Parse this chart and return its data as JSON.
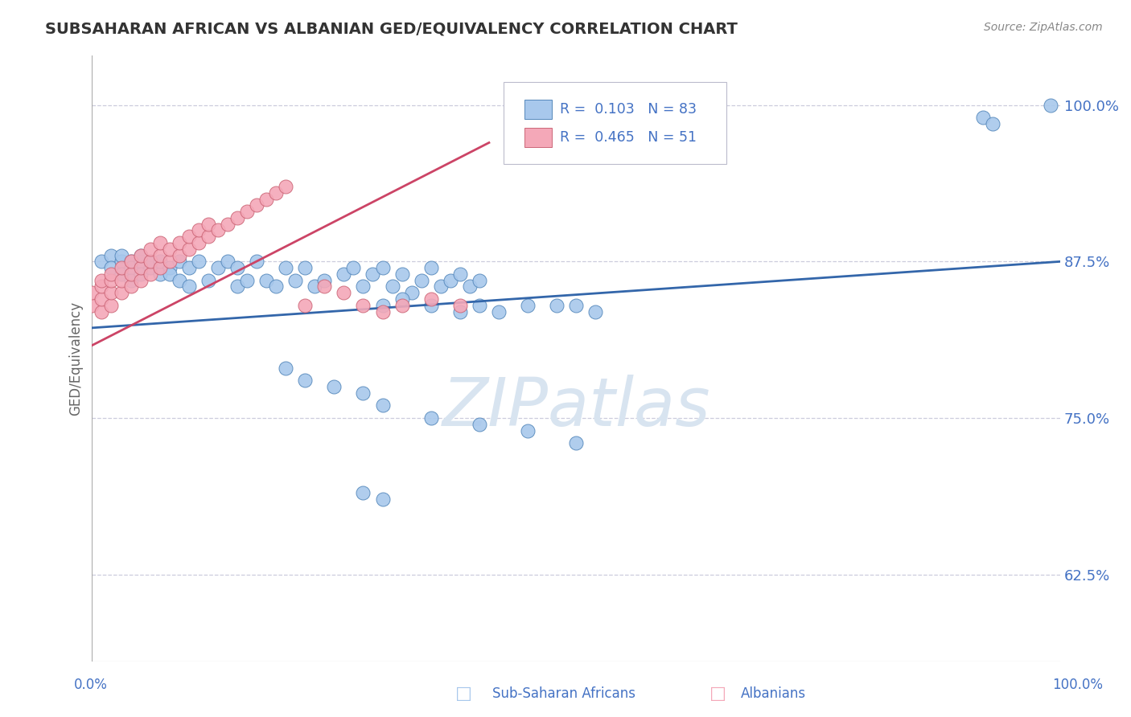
{
  "title": "SUBSAHARAN AFRICAN VS ALBANIAN GED/EQUIVALENCY CORRELATION CHART",
  "source": "Source: ZipAtlas.com",
  "ylabel": "GED/Equivalency",
  "xmin": 0.0,
  "xmax": 1.0,
  "ymin": 0.555,
  "ymax": 1.04,
  "yticks": [
    0.625,
    0.75,
    0.875,
    1.0
  ],
  "ytick_labels": [
    "62.5%",
    "75.0%",
    "87.5%",
    "100.0%"
  ],
  "blue_color": "#A8C8EC",
  "blue_edge_color": "#5588BB",
  "pink_color": "#F4A8B8",
  "pink_edge_color": "#CC6677",
  "blue_line_color": "#3366AA",
  "pink_line_color": "#CC4466",
  "label_color": "#4472C4",
  "grid_color": "#CCCCDD",
  "background_color": "#FFFFFF",
  "watermark_color": "#D8E4F0",
  "blue_trend_x": [
    0.0,
    1.0
  ],
  "blue_trend_y": [
    0.822,
    0.875
  ],
  "pink_trend_x": [
    0.0,
    0.41
  ],
  "pink_trend_y": [
    0.808,
    0.97
  ]
}
